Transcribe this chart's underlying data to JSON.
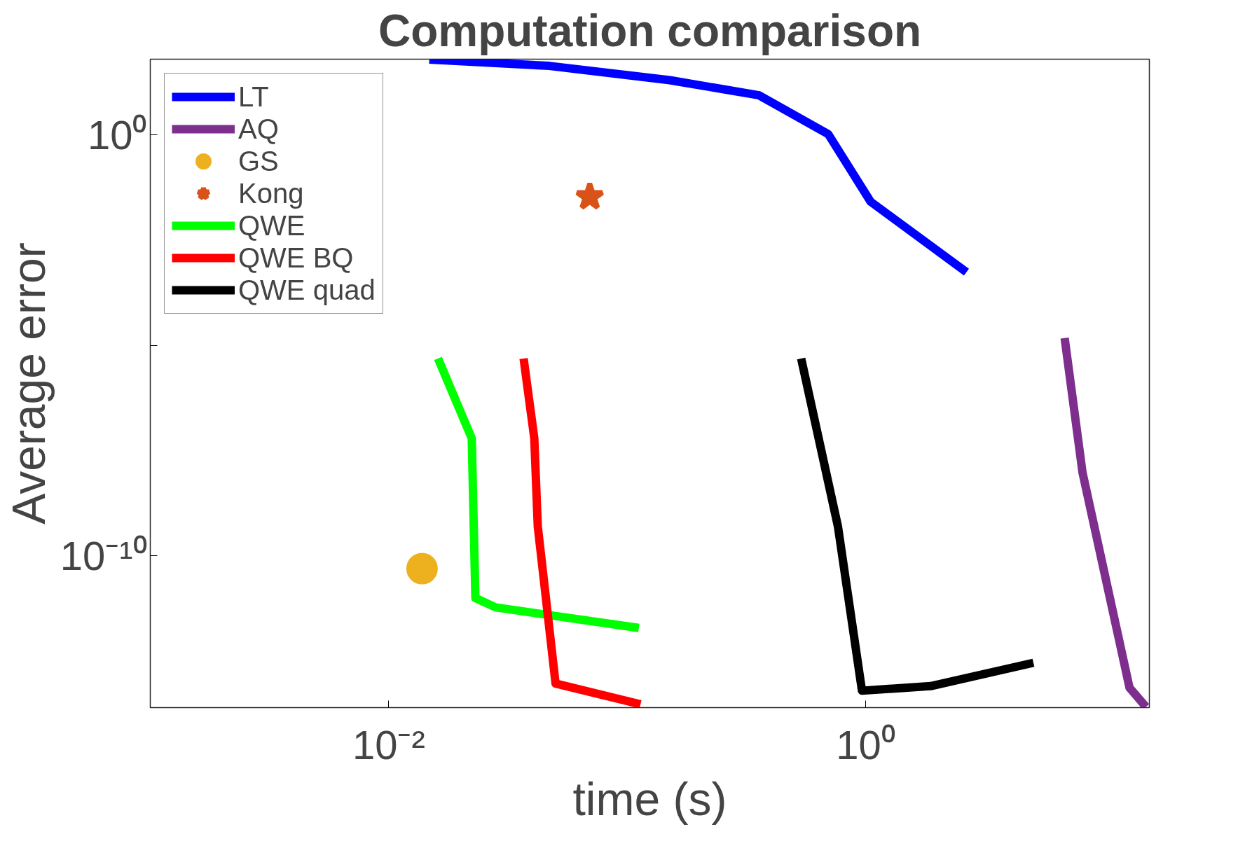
{
  "chart_data": {
    "type": "line",
    "title": "Computation comparison",
    "xlabel": "time (s)",
    "ylabel": "Average error",
    "log": "xy",
    "grid": false,
    "legend": "top left",
    "xlim": [
      0.001,
      15.5
    ],
    "ylim": [
      2.5e-14,
      63
    ],
    "xticks": [
      {
        "value": 0.01,
        "label": "10⁻²"
      },
      {
        "value": 1,
        "label": "10⁰"
      }
    ],
    "yticks": [
      {
        "value": 1e-10,
        "label": "10⁻¹⁰"
      },
      {
        "value": 1e-05,
        "label": null
      },
      {
        "value": 1,
        "label": "10⁰"
      }
    ],
    "series": [
      {
        "name": "LT",
        "color": "#0000ff",
        "x": [
          0.0148,
          0.0472,
          0.151,
          0.358,
          0.697,
          1.05,
          2.65
        ],
        "values": [
          61.7,
          43.6,
          20,
          8.7,
          1.05,
          0.026,
          0.00055
        ]
      },
      {
        "name": "AQ",
        "color": "#7e2f8e",
        "x": [
          6.84,
          8.13,
          12.8,
          15.0
        ],
        "values": [
          1.5e-05,
          9.5e-09,
          7.4e-14,
          2.6e-14
        ]
      },
      {
        "name": "GS",
        "type": "scatter",
        "marker": "circle",
        "color": "#edb120",
        "x": [
          0.0138
        ],
        "values": [
          5e-11
        ]
      },
      {
        "name": "Kong",
        "type": "scatter",
        "marker": "star",
        "color": "#d95319",
        "x": [
          0.0697
        ],
        "values": [
          0.034
        ]
      },
      {
        "name": "QWE",
        "color": "#00ff00",
        "x": [
          0.0161,
          0.0223,
          0.0231,
          0.0281,
          0.112
        ],
        "values": [
          4.9e-06,
          6.2e-08,
          1e-11,
          6e-12,
          1.95e-12
        ]
      },
      {
        "name": "QWE BQ",
        "color": "#ff0000",
        "x": [
          0.0368,
          0.0408,
          0.0422,
          0.0501,
          0.1138
        ],
        "values": [
          4.9e-06,
          6.2e-08,
          5e-10,
          9.3e-14,
          3e-14
        ]
      },
      {
        "name": "QWE quad",
        "color": "#000000",
        "x": [
          0.537,
          0.766,
          0.966,
          1.875,
          5.06
        ],
        "values": [
          4.9e-06,
          5e-10,
          6.3e-14,
          8.1e-14,
          2.9e-13
        ]
      }
    ]
  }
}
